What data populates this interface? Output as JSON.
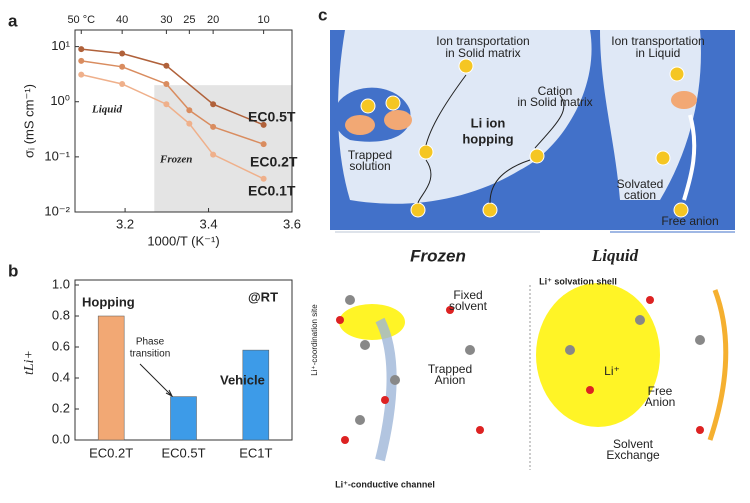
{
  "figure": {
    "panel_labels": [
      "a",
      "b",
      "c"
    ]
  },
  "chart_data": [
    {
      "type": "line",
      "log_y": true,
      "xlim": [
        3.08,
        3.6
      ],
      "ylim": [
        0.01,
        20
      ],
      "xticks": [
        3.2,
        3.4,
        3.6
      ],
      "yticks": [
        {
          "value": 0.01,
          "label": "10⁻²"
        },
        {
          "value": 0.1,
          "label": "10⁻¹"
        },
        {
          "value": 1,
          "label": "10⁰"
        },
        {
          "value": 10,
          "label": "10¹"
        }
      ],
      "top_xticks": [
        {
          "value": 3.095,
          "label": "50 °C"
        },
        {
          "value": 3.193,
          "label": "40"
        },
        {
          "value": 3.299,
          "label": "30"
        },
        {
          "value": 3.354,
          "label": "25"
        },
        {
          "value": 3.411,
          "label": "20"
        },
        {
          "value": 3.532,
          "label": "10"
        }
      ],
      "xlabel": "1000/T (K⁻¹)",
      "ylabel": "σᵢ (mS cm⁻¹)",
      "shaded_xrange": [
        3.27,
        3.6
      ],
      "shaded_ymax": 2,
      "shade_color": "#e4e4e4",
      "annotations": [
        "Liquid",
        "Frozen"
      ],
      "series": [
        {
          "name": "EC0.5T",
          "color": "#b0613a",
          "x": [
            3.095,
            3.193,
            3.299,
            3.411,
            3.532
          ],
          "values": [
            9,
            7.5,
            4.5,
            0.9,
            0.38
          ]
        },
        {
          "name": "EC0.2T",
          "color": "#d98c5f",
          "x": [
            3.095,
            3.193,
            3.299,
            3.354,
            3.411,
            3.532
          ],
          "values": [
            5.5,
            4.3,
            2.1,
            0.7,
            0.35,
            0.17
          ]
        },
        {
          "name": "EC0.1T",
          "color": "#efb08b",
          "x": [
            3.095,
            3.193,
            3.299,
            3.354,
            3.411,
            3.532
          ],
          "values": [
            3.1,
            2.1,
            0.9,
            0.4,
            0.11,
            0.04
          ]
        }
      ]
    },
    {
      "type": "bar",
      "categories": [
        "EC0.2T",
        "EC0.5T",
        "EC1T"
      ],
      "values": [
        0.8,
        0.28,
        0.58
      ],
      "colors": [
        "#f2a874",
        "#3d9be8",
        "#3d9be8"
      ],
      "ylim": [
        0,
        1
      ],
      "yticks": [
        {
          "value": 0,
          "label": "0.0"
        },
        0.2,
        0.4,
        0.6,
        0.8,
        {
          "value": 1,
          "label": "1.0"
        }
      ],
      "ylabel": "tLi+",
      "annotations": [
        "Hopping",
        "Vehicle",
        "@RT",
        "Phase",
        "transition"
      ]
    }
  ],
  "diagram": {
    "ion_solid": [
      "Ion transportation",
      "in Solid matrix"
    ],
    "ion_liquid": [
      "Ion transportation",
      "in Liquid"
    ],
    "cation_solid": [
      "Cation",
      "in Solid matrix"
    ],
    "hopping": [
      "Li ion",
      "hopping"
    ],
    "trapped_solution": [
      "Trapped",
      "solution"
    ],
    "solvated_cation": [
      "Solvated",
      "cation"
    ],
    "free_anion": "Free anion",
    "frozen": "Frozen",
    "liquid": "Liquid",
    "coordination_site": "Li⁺-coordination site",
    "solvation_shell": "Li⁺ solvation shell",
    "fixed_solvent": [
      "Fixed",
      "solvent"
    ],
    "trapped_anion": [
      "Trapped",
      "Anion"
    ],
    "free_anion_2": [
      "Free",
      "Anion"
    ],
    "li": "Li⁺",
    "solvent_exchange": [
      "Solvent",
      "Exchange"
    ],
    "channel": "Li⁺-conductive channel"
  }
}
